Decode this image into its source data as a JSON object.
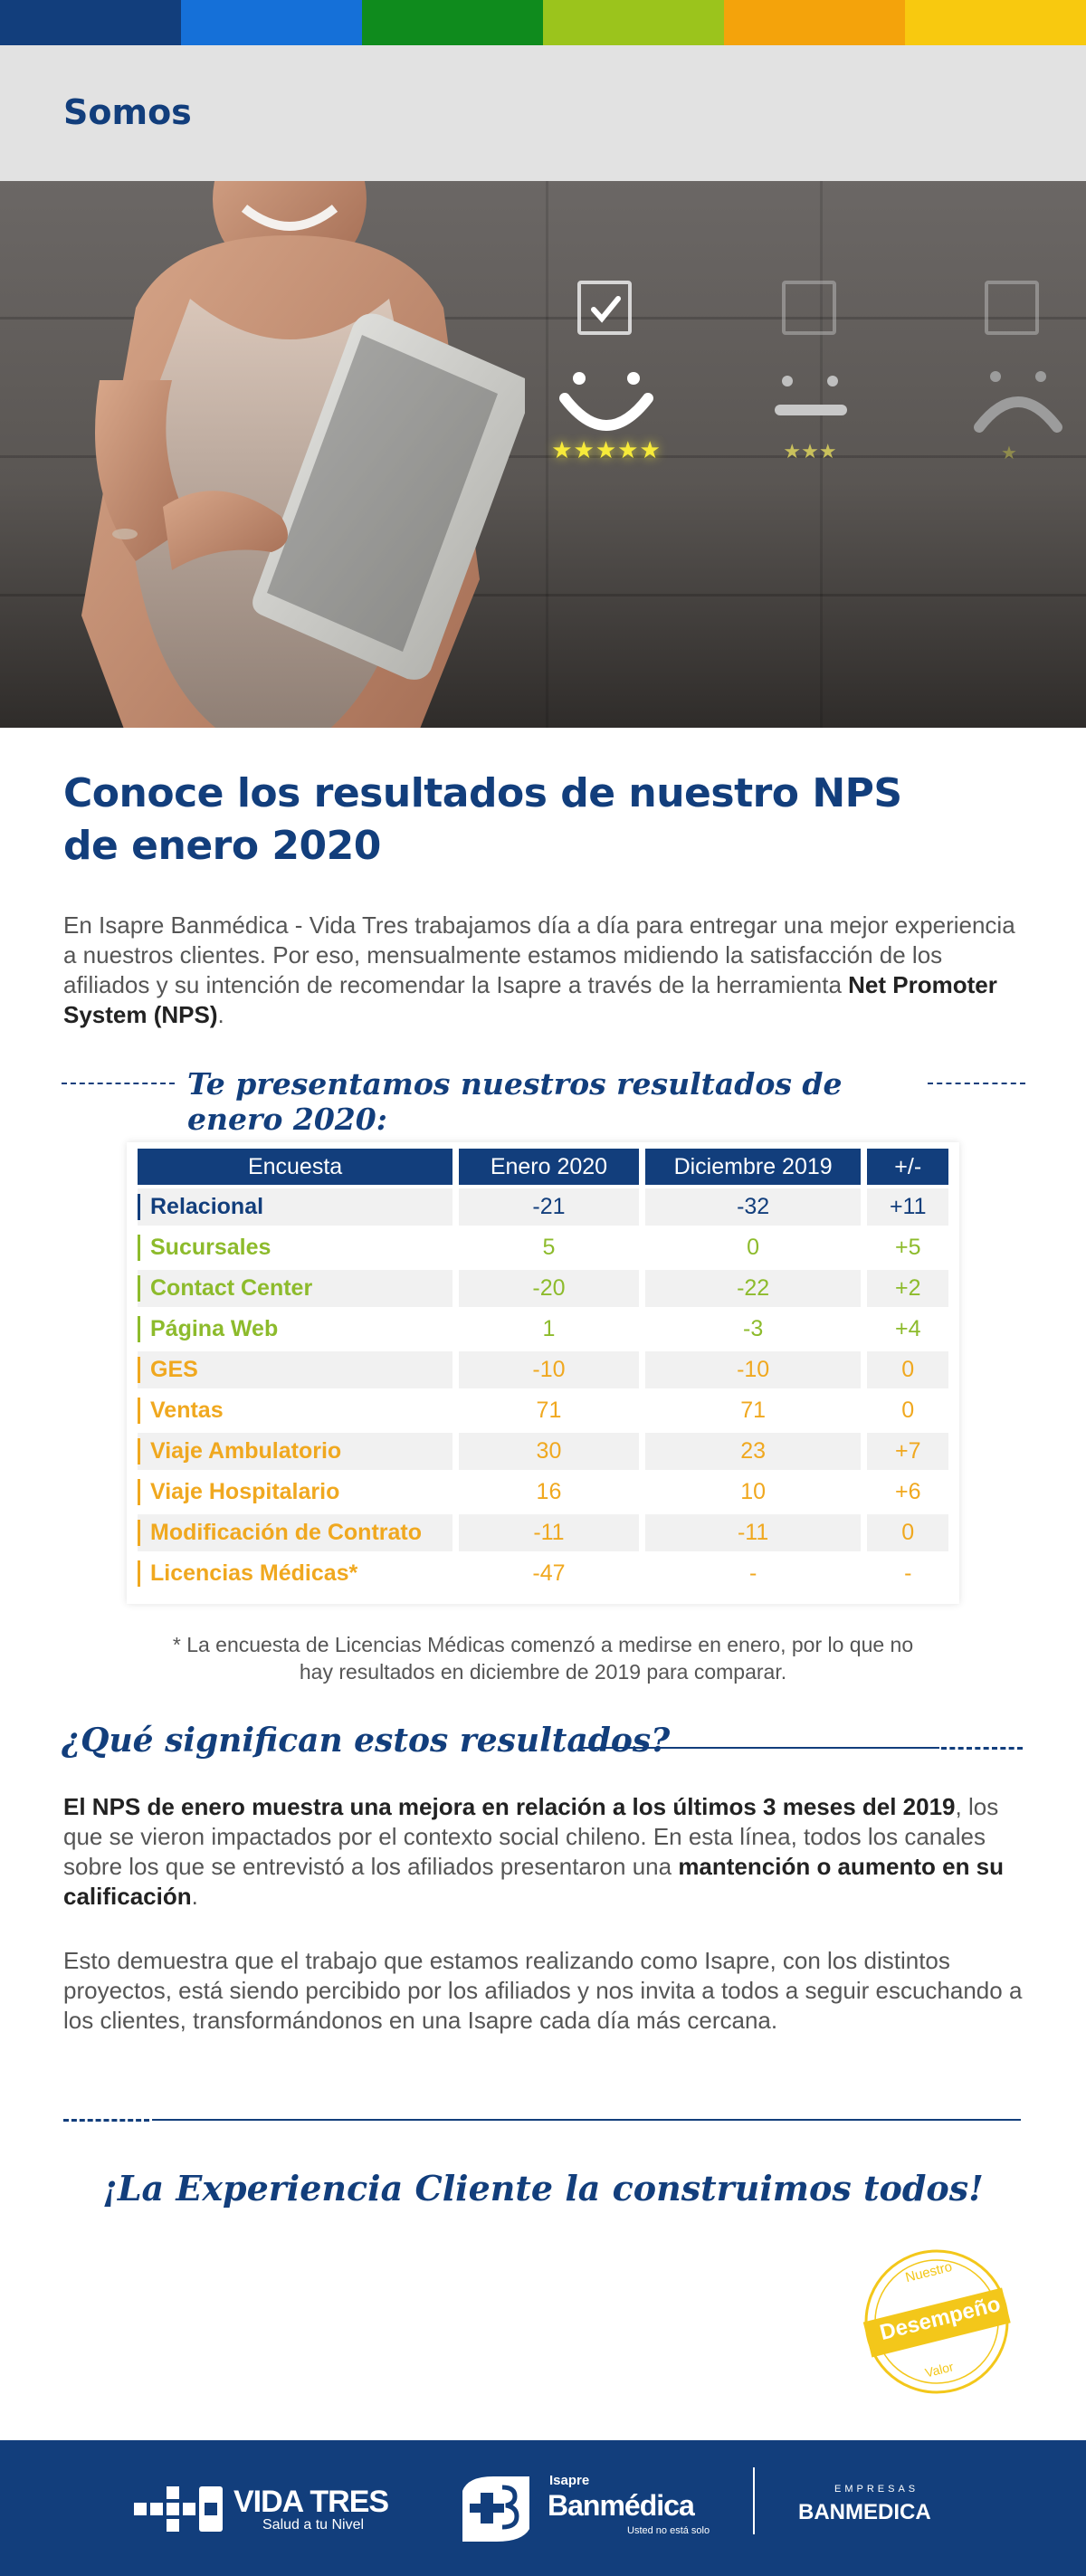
{
  "colors": {
    "brand_blue": "#123e7c",
    "green": "#8dbb2c",
    "orange": "#f0a81f",
    "strip": [
      "#123e7c",
      "#1570d8",
      "#0f8b1d",
      "#9bc41c",
      "#f4a30b",
      "#f8c90f"
    ]
  },
  "header": {
    "title": "Somos"
  },
  "hero": {
    "icons": [
      "happy-face-icon",
      "neutral-face-icon",
      "sad-face-icon",
      "star-icon",
      "checkbox-icon"
    ]
  },
  "main": {
    "title": "Conoce los resultados de nuestro NPS de enero 2020",
    "intro": "En Isapre Banmédica - Vida Tres trabajamos día a día para entregar una mejor experiencia a nuestros clientes.  Por eso, mensualmente estamos midiendo la satisfacción de los afiliados y su intención de recomendar la Isapre a través de la herramienta ",
    "intro_bold": "Net Promoter System (NPS)",
    "intro_end": ".",
    "results_heading": "Te presentamos nuestros resultados de enero 2020:"
  },
  "table": {
    "headers": [
      "Encuesta",
      "Enero 2020",
      "Diciembre 2019",
      "+/-"
    ],
    "rows": [
      {
        "label": "Relacional",
        "enero": "-21",
        "diciembre": "-32",
        "diff": "+11",
        "color": "#123e7c"
      },
      {
        "label": "Sucursales",
        "enero": "5",
        "diciembre": "0",
        "diff": "+5",
        "color": "#8dbb2c"
      },
      {
        "label": "Contact Center",
        "enero": "-20",
        "diciembre": "-22",
        "diff": "+2",
        "color": "#8dbb2c"
      },
      {
        "label": "Página Web",
        "enero": "1",
        "diciembre": "-3",
        "diff": "+4",
        "color": "#8dbb2c"
      },
      {
        "label": "GES",
        "enero": "-10",
        "diciembre": "-10",
        "diff": "0",
        "color": "#f0a81f"
      },
      {
        "label": "Ventas",
        "enero": "71",
        "diciembre": "71",
        "diff": "0",
        "color": "#f0a81f"
      },
      {
        "label": "Viaje Ambulatorio",
        "enero": "30",
        "diciembre": "23",
        "diff": "+7",
        "color": "#f0a81f"
      },
      {
        "label": "Viaje Hospitalario",
        "enero": "16",
        "diciembre": "10",
        "diff": "+6",
        "color": "#f0a81f"
      },
      {
        "label": "Modificación de Contrato",
        "enero": "-11",
        "diciembre": "-11",
        "diff": "0",
        "color": "#f0a81f"
      },
      {
        "label": "Licencias Médicas*",
        "enero": "-47",
        "diciembre": "-",
        "diff": "-",
        "color": "#f0a81f"
      }
    ],
    "note": "* La encuesta de Licencias Médicas comenzó a medirse en enero, por lo que no hay resultados en diciembre de 2019 para comparar."
  },
  "meaning": {
    "heading": "¿Qué significan estos resultados?",
    "p1_bold": "El NPS de enero muestra una mejora en relación a los últimos 3 meses del 2019",
    "p1_text": ", los que se vieron impactados por el contexto social chileno. En esta línea, todos los canales sobre los que se entrevistó a los afiliados presentaron una ",
    "p1_bold2": "mantención o aumento en su calificación",
    "p1_end": ".",
    "p2": "Esto demuestra que el trabajo que estamos realizando como Isapre, con los distintos proyectos, está siendo percibido por los afiliados y nos invita a todos a seguir escuchando a los clientes, transformándonos en una Isapre cada día más cercana."
  },
  "closing": "¡La Experiencia Cliente la construimos todos!",
  "stamp": {
    "top": "Nuestro",
    "middle": "Desempeño",
    "bottom": "Valor"
  },
  "footer": {
    "vidatres_name": "VIDA TRES",
    "vidatres_tagline": "Salud a tu Nivel",
    "banmedica_small": "Isapre",
    "banmedica_name": "Banmédica",
    "banmedica_tagline": "Usted no está solo",
    "empresas_small": "EMPRESAS",
    "empresas_name": "BANMEDICA"
  }
}
